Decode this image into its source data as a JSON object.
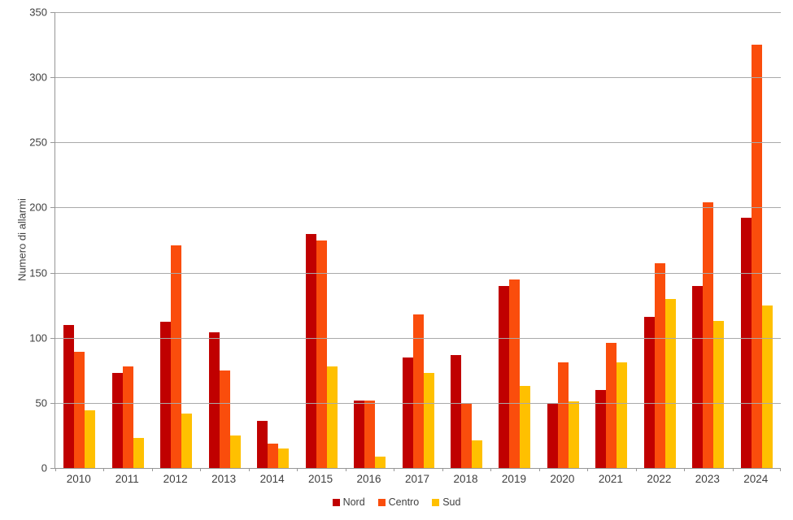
{
  "chart_data": {
    "type": "bar",
    "ylabel": "Numero di allarmi",
    "xlabel": "",
    "ylim": [
      0,
      350
    ],
    "y_ticks": [
      0,
      50,
      100,
      150,
      200,
      250,
      300,
      350
    ],
    "grid": "horizontal",
    "legend_position": "bottom",
    "categories": [
      "2010",
      "2011",
      "2012",
      "2013",
      "2014",
      "2015",
      "2016",
      "2017",
      "2018",
      "2019",
      "2020",
      "2021",
      "2022",
      "2023",
      "2024"
    ],
    "series": [
      {
        "name": "Nord",
        "color": "#C00000",
        "values": [
          110,
          73,
          112,
          104,
          36,
          180,
          52,
          85,
          87,
          140,
          50,
          60,
          116,
          140,
          192
        ]
      },
      {
        "name": "Centro",
        "color": "#FA4D0C",
        "values": [
          89,
          78,
          171,
          75,
          19,
          175,
          52,
          118,
          50,
          145,
          81,
          96,
          157,
          204,
          325
        ]
      },
      {
        "name": "Sud",
        "color": "#FFC000",
        "values": [
          44,
          23,
          42,
          25,
          15,
          78,
          9,
          73,
          21,
          63,
          51,
          81,
          130,
          113,
          125
        ]
      }
    ]
  },
  "colors": {
    "axis": "#969696",
    "grid": "#A9A9A9",
    "text": "#3F3F3F",
    "background": "#FFFFFF"
  }
}
